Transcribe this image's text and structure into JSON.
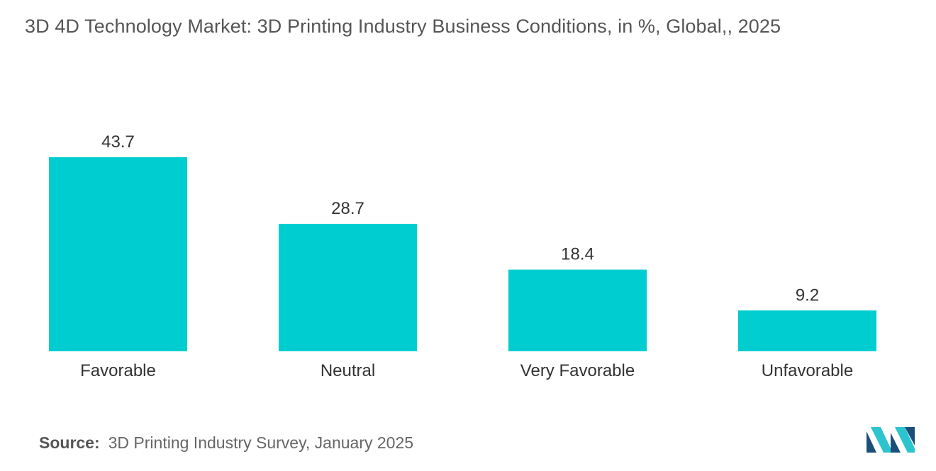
{
  "title": "3D  4D Technology Market: 3D Printing Industry Business Conditions, in %, Global,, 2025",
  "source": {
    "label": "Source:",
    "text": "3D Printing Industry Survey, January 2025"
  },
  "logo_icon": "mordor-intelligence-logo-icon",
  "colors": {
    "bar": "#00CDD0",
    "text": "#333333",
    "logo_dark": "#1B4F7A",
    "logo_light": "#2CC4CF"
  },
  "chart_data": {
    "type": "bar",
    "title": "3D  4D Technology Market: 3D Printing Industry Business Conditions, in %, Global,, 2025",
    "categories": [
      "Favorable",
      "Neutral",
      "Very Favorable",
      "Unfavorable"
    ],
    "values": [
      43.7,
      28.7,
      18.4,
      9.2
    ],
    "data_labels": [
      "43.7",
      "28.7",
      "18.4",
      "9.2"
    ],
    "xlabel": "",
    "ylabel": "",
    "ylim": [
      0,
      43.7
    ],
    "grid": false,
    "legend": "none"
  }
}
